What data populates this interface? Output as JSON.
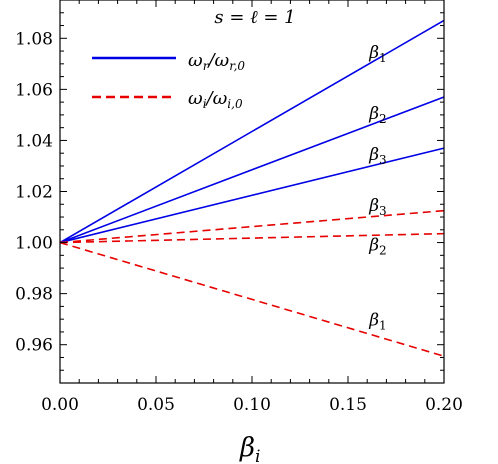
{
  "chart_data": {
    "type": "line",
    "annotation": "s = ℓ = 1",
    "xlabel": "β",
    "xlabel_sub": "i",
    "ylabel": "",
    "xlim": [
      0.0,
      0.2
    ],
    "ylim": [
      0.945,
      1.095
    ],
    "x_ticks": [
      "0.00",
      "0.05",
      "0.10",
      "0.15",
      "0.20"
    ],
    "y_ticks": [
      "0.96",
      "0.98",
      "1.00",
      "1.02",
      "1.04",
      "1.06",
      "1.08"
    ],
    "x_tick_values": [
      0.0,
      0.05,
      0.1,
      0.15,
      0.2
    ],
    "y_tick_values": [
      0.96,
      0.98,
      1.0,
      1.02,
      1.04,
      1.06,
      1.08
    ],
    "grid": false,
    "legend_placement": "top-left",
    "legend": [
      {
        "text": "ω",
        "sub": "r",
        "den": "ω",
        "den_sub": "r,0",
        "color": "#0000e6",
        "style": "solid"
      },
      {
        "text": "ω",
        "sub": "i",
        "den": "ω",
        "den_sub": "i,0",
        "color": "#e60000",
        "style": "dashed"
      }
    ],
    "series": [
      {
        "group": "real",
        "label": "β",
        "label_sub": "1",
        "color": "#0000e6",
        "style": "solid",
        "x": [
          0.0,
          0.2
        ],
        "y": [
          1.0,
          1.087
        ]
      },
      {
        "group": "real",
        "label": "β",
        "label_sub": "2",
        "color": "#0000e6",
        "style": "solid",
        "x": [
          0.0,
          0.2
        ],
        "y": [
          1.0,
          1.057
        ]
      },
      {
        "group": "real",
        "label": "β",
        "label_sub": "3",
        "color": "#0000e6",
        "style": "solid",
        "x": [
          0.0,
          0.2
        ],
        "y": [
          1.0,
          1.037
        ]
      },
      {
        "group": "imag",
        "label": "β",
        "label_sub": "3",
        "color": "#e60000",
        "style": "dashed",
        "x": [
          0.0,
          0.2
        ],
        "y": [
          1.0,
          1.0125
        ]
      },
      {
        "group": "imag",
        "label": "β",
        "label_sub": "2",
        "color": "#e60000",
        "style": "dashed",
        "x": [
          0.0,
          0.2
        ],
        "y": [
          1.0,
          1.0035
        ]
      },
      {
        "group": "imag",
        "label": "β",
        "label_sub": "1",
        "color": "#e60000",
        "style": "dashed",
        "x": [
          0.0,
          0.2
        ],
        "y": [
          1.0,
          0.9555
        ]
      }
    ]
  }
}
